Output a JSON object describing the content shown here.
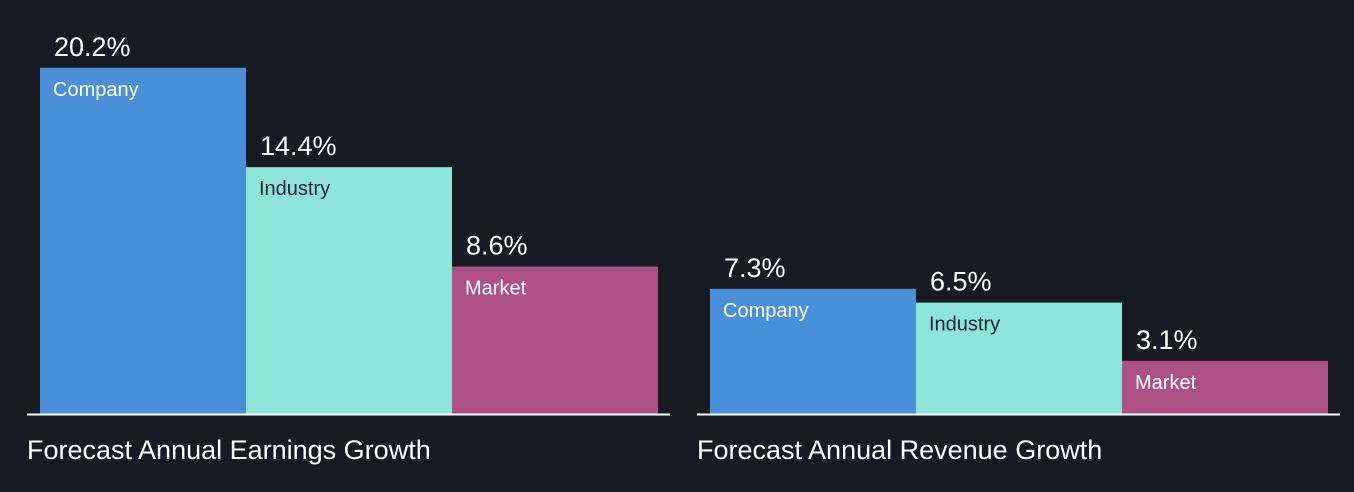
{
  "chart_data": [
    {
      "type": "bar",
      "title": "Forecast Annual Earnings Growth",
      "categories": [
        "Company",
        "Industry",
        "Market"
      ],
      "values": [
        20.2,
        14.4,
        8.6
      ],
      "value_labels": [
        "20.2%",
        "14.4%",
        "8.6%"
      ],
      "unit": "%",
      "grid": false,
      "legend": "none"
    },
    {
      "type": "bar",
      "title": "Forecast Annual Revenue Growth",
      "categories": [
        "Company",
        "Industry",
        "Market"
      ],
      "values": [
        7.3,
        6.5,
        3.1
      ],
      "value_labels": [
        "7.3%",
        "6.5%",
        "3.1%"
      ],
      "unit": "%",
      "grid": false,
      "legend": "none"
    }
  ],
  "colors": {
    "background": "#171a22",
    "company": "#4a90d9",
    "industry": "#8ee4d8",
    "market": "#ad5184",
    "text_light": "#ffffff",
    "text_dark": "#1d2430",
    "baseline": "#ffffff"
  }
}
